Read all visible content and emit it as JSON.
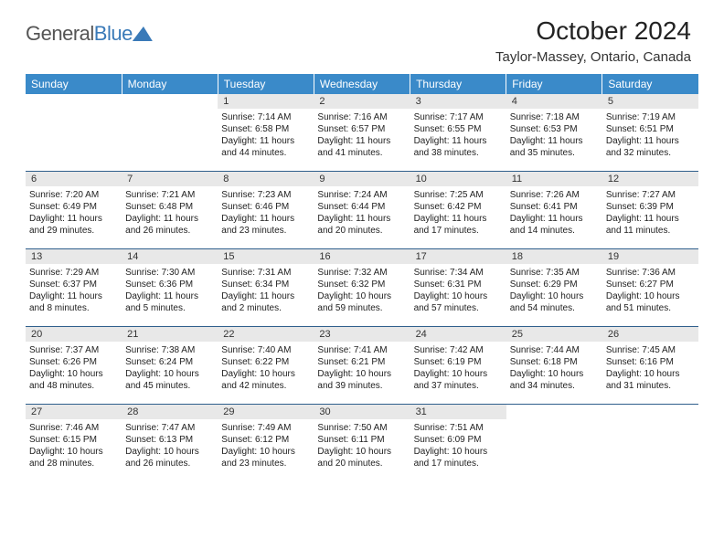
{
  "brand": {
    "text1": "General",
    "text2": "Blue"
  },
  "title": "October 2024",
  "location": "Taylor-Massey, Ontario, Canada",
  "colors": {
    "header_bg": "#3a8ac9",
    "header_text": "#ffffff",
    "daynum_bg": "#e8e8e8",
    "row_border": "#2f5f8c",
    "brand_blue": "#3a7ab8"
  },
  "weekdays": [
    "Sunday",
    "Monday",
    "Tuesday",
    "Wednesday",
    "Thursday",
    "Friday",
    "Saturday"
  ],
  "weeks": [
    [
      {
        "n": "",
        "sr": "",
        "ss": "",
        "dl": "",
        "empty": true
      },
      {
        "n": "",
        "sr": "",
        "ss": "",
        "dl": "",
        "empty": true
      },
      {
        "n": "1",
        "sr": "Sunrise: 7:14 AM",
        "ss": "Sunset: 6:58 PM",
        "dl": "Daylight: 11 hours and 44 minutes."
      },
      {
        "n": "2",
        "sr": "Sunrise: 7:16 AM",
        "ss": "Sunset: 6:57 PM",
        "dl": "Daylight: 11 hours and 41 minutes."
      },
      {
        "n": "3",
        "sr": "Sunrise: 7:17 AM",
        "ss": "Sunset: 6:55 PM",
        "dl": "Daylight: 11 hours and 38 minutes."
      },
      {
        "n": "4",
        "sr": "Sunrise: 7:18 AM",
        "ss": "Sunset: 6:53 PM",
        "dl": "Daylight: 11 hours and 35 minutes."
      },
      {
        "n": "5",
        "sr": "Sunrise: 7:19 AM",
        "ss": "Sunset: 6:51 PM",
        "dl": "Daylight: 11 hours and 32 minutes."
      }
    ],
    [
      {
        "n": "6",
        "sr": "Sunrise: 7:20 AM",
        "ss": "Sunset: 6:49 PM",
        "dl": "Daylight: 11 hours and 29 minutes."
      },
      {
        "n": "7",
        "sr": "Sunrise: 7:21 AM",
        "ss": "Sunset: 6:48 PM",
        "dl": "Daylight: 11 hours and 26 minutes."
      },
      {
        "n": "8",
        "sr": "Sunrise: 7:23 AM",
        "ss": "Sunset: 6:46 PM",
        "dl": "Daylight: 11 hours and 23 minutes."
      },
      {
        "n": "9",
        "sr": "Sunrise: 7:24 AM",
        "ss": "Sunset: 6:44 PM",
        "dl": "Daylight: 11 hours and 20 minutes."
      },
      {
        "n": "10",
        "sr": "Sunrise: 7:25 AM",
        "ss": "Sunset: 6:42 PM",
        "dl": "Daylight: 11 hours and 17 minutes."
      },
      {
        "n": "11",
        "sr": "Sunrise: 7:26 AM",
        "ss": "Sunset: 6:41 PM",
        "dl": "Daylight: 11 hours and 14 minutes."
      },
      {
        "n": "12",
        "sr": "Sunrise: 7:27 AM",
        "ss": "Sunset: 6:39 PM",
        "dl": "Daylight: 11 hours and 11 minutes."
      }
    ],
    [
      {
        "n": "13",
        "sr": "Sunrise: 7:29 AM",
        "ss": "Sunset: 6:37 PM",
        "dl": "Daylight: 11 hours and 8 minutes."
      },
      {
        "n": "14",
        "sr": "Sunrise: 7:30 AM",
        "ss": "Sunset: 6:36 PM",
        "dl": "Daylight: 11 hours and 5 minutes."
      },
      {
        "n": "15",
        "sr": "Sunrise: 7:31 AM",
        "ss": "Sunset: 6:34 PM",
        "dl": "Daylight: 11 hours and 2 minutes."
      },
      {
        "n": "16",
        "sr": "Sunrise: 7:32 AM",
        "ss": "Sunset: 6:32 PM",
        "dl": "Daylight: 10 hours and 59 minutes."
      },
      {
        "n": "17",
        "sr": "Sunrise: 7:34 AM",
        "ss": "Sunset: 6:31 PM",
        "dl": "Daylight: 10 hours and 57 minutes."
      },
      {
        "n": "18",
        "sr": "Sunrise: 7:35 AM",
        "ss": "Sunset: 6:29 PM",
        "dl": "Daylight: 10 hours and 54 minutes."
      },
      {
        "n": "19",
        "sr": "Sunrise: 7:36 AM",
        "ss": "Sunset: 6:27 PM",
        "dl": "Daylight: 10 hours and 51 minutes."
      }
    ],
    [
      {
        "n": "20",
        "sr": "Sunrise: 7:37 AM",
        "ss": "Sunset: 6:26 PM",
        "dl": "Daylight: 10 hours and 48 minutes."
      },
      {
        "n": "21",
        "sr": "Sunrise: 7:38 AM",
        "ss": "Sunset: 6:24 PM",
        "dl": "Daylight: 10 hours and 45 minutes."
      },
      {
        "n": "22",
        "sr": "Sunrise: 7:40 AM",
        "ss": "Sunset: 6:22 PM",
        "dl": "Daylight: 10 hours and 42 minutes."
      },
      {
        "n": "23",
        "sr": "Sunrise: 7:41 AM",
        "ss": "Sunset: 6:21 PM",
        "dl": "Daylight: 10 hours and 39 minutes."
      },
      {
        "n": "24",
        "sr": "Sunrise: 7:42 AM",
        "ss": "Sunset: 6:19 PM",
        "dl": "Daylight: 10 hours and 37 minutes."
      },
      {
        "n": "25",
        "sr": "Sunrise: 7:44 AM",
        "ss": "Sunset: 6:18 PM",
        "dl": "Daylight: 10 hours and 34 minutes."
      },
      {
        "n": "26",
        "sr": "Sunrise: 7:45 AM",
        "ss": "Sunset: 6:16 PM",
        "dl": "Daylight: 10 hours and 31 minutes."
      }
    ],
    [
      {
        "n": "27",
        "sr": "Sunrise: 7:46 AM",
        "ss": "Sunset: 6:15 PM",
        "dl": "Daylight: 10 hours and 28 minutes."
      },
      {
        "n": "28",
        "sr": "Sunrise: 7:47 AM",
        "ss": "Sunset: 6:13 PM",
        "dl": "Daylight: 10 hours and 26 minutes."
      },
      {
        "n": "29",
        "sr": "Sunrise: 7:49 AM",
        "ss": "Sunset: 6:12 PM",
        "dl": "Daylight: 10 hours and 23 minutes."
      },
      {
        "n": "30",
        "sr": "Sunrise: 7:50 AM",
        "ss": "Sunset: 6:11 PM",
        "dl": "Daylight: 10 hours and 20 minutes."
      },
      {
        "n": "31",
        "sr": "Sunrise: 7:51 AM",
        "ss": "Sunset: 6:09 PM",
        "dl": "Daylight: 10 hours and 17 minutes."
      },
      {
        "n": "",
        "sr": "",
        "ss": "",
        "dl": "",
        "empty": true
      },
      {
        "n": "",
        "sr": "",
        "ss": "",
        "dl": "",
        "empty": true
      }
    ]
  ]
}
